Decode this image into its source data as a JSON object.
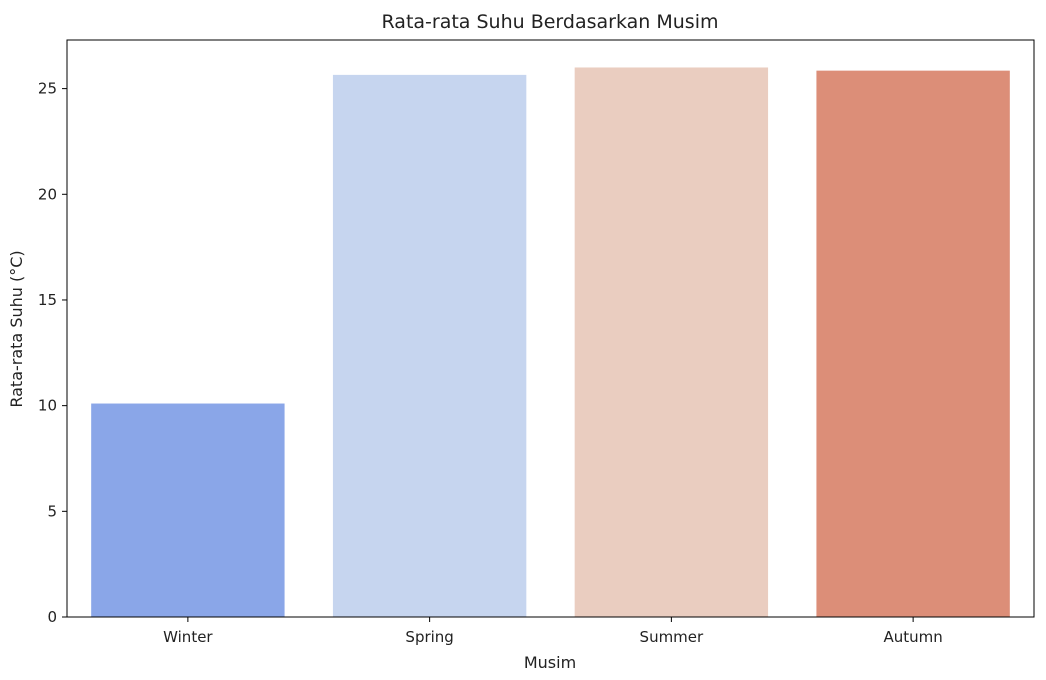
{
  "chart_data": {
    "type": "bar",
    "title": "Rata-rata Suhu Berdasarkan Musim",
    "xlabel": "Musim",
    "ylabel": "Rata-rata Suhu (°C)",
    "categories": [
      "Winter",
      "Spring",
      "Summer",
      "Autumn"
    ],
    "values": [
      10.1,
      25.65,
      26.0,
      25.85
    ],
    "colors": [
      "#8aa6e8",
      "#c6d5ef",
      "#eacdc0",
      "#dc8e78"
    ],
    "ylim": [
      0,
      27.3
    ],
    "yticks": [
      0,
      5,
      10,
      15,
      20,
      25
    ],
    "grid": false
  }
}
